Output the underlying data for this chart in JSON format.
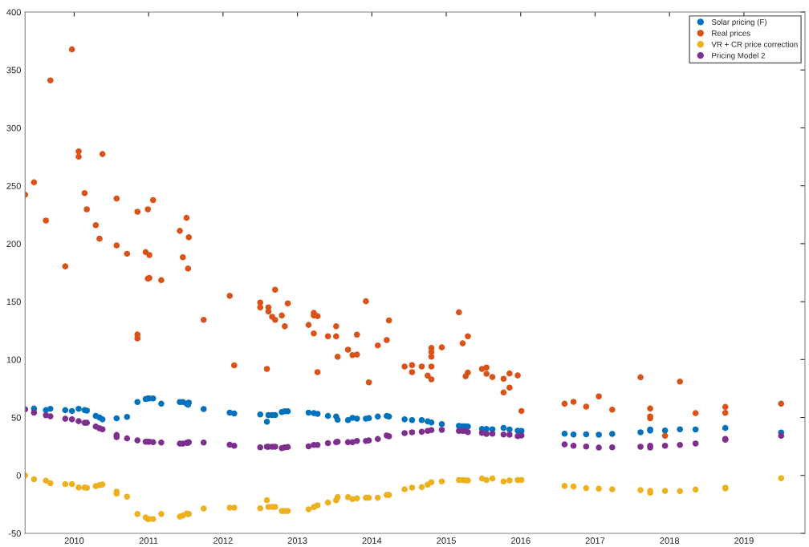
{
  "chart_data": {
    "type": "scatter",
    "xlim": [
      2009.34,
      2019.82
    ],
    "xticks": [
      2010,
      2011,
      2012,
      2013,
      2014,
      2015,
      2016,
      2017,
      2018,
      2019
    ],
    "ylim": [
      -50,
      400
    ],
    "yticks": [
      -50,
      0,
      50,
      100,
      150,
      200,
      250,
      300,
      350,
      400
    ],
    "legend": "top right",
    "marker": "circle",
    "grid": false,
    "series": [
      {
        "name": "Solar pricing (F)",
        "color": "#0072bd",
        "x": [
          2009.46,
          2009.62,
          2009.68,
          2009.88,
          2009.97,
          2010.06,
          2010.14,
          2010.17,
          2010.29,
          2010.34,
          2010.38,
          2010.57,
          2010.71,
          2010.85,
          2010.96,
          2010.99,
          2011.01,
          2011.06,
          2011.17,
          2011.42,
          2011.46,
          2011.51,
          2011.53,
          2011.54,
          2011.74,
          2012.09,
          2012.15,
          2012.5,
          2012.59,
          2012.61,
          2012.66,
          2012.7,
          2012.79,
          2012.83,
          2012.87,
          2013.15,
          2013.22,
          2013.27,
          2013.41,
          2013.52,
          2013.54,
          2013.68,
          2013.74,
          2013.8,
          2013.92,
          2013.96,
          2014.08,
          2014.2,
          2014.23,
          2014.44,
          2014.54,
          2014.67,
          2014.75,
          2014.8,
          2014.94,
          2015.17,
          2015.22,
          2015.26,
          2015.29,
          2015.48,
          2015.54,
          2015.62,
          2015.77,
          2015.85,
          2015.96,
          2016.01,
          2016.59,
          2016.71,
          2016.88,
          2017.05,
          2017.23,
          2017.61,
          2017.74,
          2017.74,
          2017.94,
          2018.14,
          2018.35,
          2018.75,
          2019.5
        ],
        "values": [
          57.7,
          56.3,
          57.5,
          56.3,
          55.6,
          57.5,
          56.3,
          55.9,
          51.4,
          50,
          48.4,
          49.3,
          50.5,
          63.3,
          65.9,
          66.5,
          66.5,
          66.5,
          61.9,
          63.3,
          63.3,
          61.9,
          61,
          62.8,
          57.3,
          54.2,
          53.5,
          52.6,
          46.3,
          52.1,
          52.1,
          52.1,
          54.7,
          55.4,
          55.4,
          54.2,
          53.7,
          53.1,
          51.3,
          50.8,
          48,
          47.8,
          49.7,
          49,
          49,
          49.4,
          50.8,
          51.3,
          50.8,
          48.4,
          47.8,
          47.8,
          46.6,
          45.7,
          44.3,
          42.7,
          42.4,
          42.4,
          42.2,
          40.1,
          40.1,
          39.8,
          41,
          39.6,
          38.6,
          38.4,
          36,
          35.3,
          35.5,
          35.1,
          35.8,
          37.2,
          38.7,
          39.6,
          38.8,
          39.8,
          39.6,
          40.9,
          37
        ]
      },
      {
        "name": "Real prices",
        "color": "#d95319",
        "x": [
          2009.34,
          2009.46,
          2009.62,
          2009.68,
          2009.88,
          2009.97,
          2010.06,
          2010.06,
          2010.14,
          2010.17,
          2010.29,
          2010.34,
          2010.38,
          2010.57,
          2010.57,
          2010.71,
          2010.85,
          2010.85,
          2010.85,
          2010.96,
          2010.99,
          2010.99,
          2011.01,
          2011.01,
          2011.06,
          2011.17,
          2011.42,
          2011.46,
          2011.51,
          2011.53,
          2011.54,
          2011.74,
          2012.09,
          2012.15,
          2012.5,
          2012.5,
          2012.59,
          2012.61,
          2012.61,
          2012.66,
          2012.7,
          2012.7,
          2012.79,
          2012.83,
          2012.87,
          2013.15,
          2013.22,
          2013.22,
          2013.22,
          2013.27,
          2013.27,
          2013.41,
          2013.52,
          2013.52,
          2013.54,
          2013.68,
          2013.74,
          2013.8,
          2013.8,
          2013.92,
          2013.96,
          2014.08,
          2014.2,
          2014.23,
          2014.44,
          2014.54,
          2014.54,
          2014.67,
          2014.75,
          2014.8,
          2014.8,
          2014.8,
          2014.8,
          2014.8,
          2014.94,
          2015.17,
          2015.22,
          2015.26,
          2015.29,
          2015.29,
          2015.48,
          2015.54,
          2015.54,
          2015.62,
          2015.77,
          2015.77,
          2015.85,
          2015.85,
          2015.96,
          2016.01,
          2016.59,
          2016.71,
          2016.88,
          2017.05,
          2017.23,
          2017.61,
          2017.74,
          2017.74,
          2017.74,
          2017.94,
          2018.14,
          2018.35,
          2018.75,
          2018.75,
          2019.5
        ],
        "values": [
          242.3,
          253,
          220,
          341,
          180.4,
          367.7,
          279.7,
          275.1,
          243.7,
          229.7,
          216,
          204.3,
          277.4,
          239,
          198.5,
          191.3,
          227.6,
          121.6,
          118.2,
          192.7,
          229.7,
          169.9,
          190.2,
          170.4,
          237.6,
          168.5,
          211.1,
          188.3,
          222.3,
          178.5,
          205.5,
          134.3,
          155,
          95,
          149.2,
          145,
          91.9,
          145,
          141.5,
          136.9,
          160.3,
          134.3,
          138,
          128.7,
          148.5,
          129.9,
          140.3,
          138,
          122.5,
          137.5,
          89.1,
          120.1,
          128.7,
          120,
          102.4,
          108.5,
          103.8,
          121.5,
          104.3,
          150.3,
          80.3,
          112.2,
          116.8,
          133.8,
          94,
          95.2,
          89.1,
          94,
          86.1,
          110,
          106.5,
          102.5,
          94,
          82.9,
          110.5,
          140.8,
          114,
          85.6,
          120.1,
          88.8,
          91.9,
          93.1,
          87.7,
          84.9,
          83.4,
          71.6,
          88,
          75.8,
          86.3,
          55.6,
          61.9,
          63.5,
          59.4,
          68.2,
          56.8,
          84.7,
          57.7,
          50.9,
          49.3,
          34.2,
          81,
          53.7,
          59.1,
          54,
          61.9
        ]
      },
      {
        "name": "VR + CR price correction",
        "color": "#edb120",
        "x": [
          2009.34,
          2009.46,
          2009.62,
          2009.68,
          2009.88,
          2009.97,
          2010.06,
          2010.14,
          2010.17,
          2010.29,
          2010.34,
          2010.38,
          2010.57,
          2010.57,
          2010.71,
          2010.85,
          2010.96,
          2010.99,
          2011.01,
          2011.06,
          2011.17,
          2011.42,
          2011.46,
          2011.51,
          2011.53,
          2011.54,
          2011.74,
          2012.09,
          2012.15,
          2012.5,
          2012.59,
          2012.61,
          2012.66,
          2012.7,
          2012.79,
          2012.83,
          2012.87,
          2013.15,
          2013.22,
          2013.27,
          2013.41,
          2013.52,
          2013.54,
          2013.68,
          2013.74,
          2013.8,
          2013.92,
          2013.96,
          2014.08,
          2014.2,
          2014.23,
          2014.44,
          2014.54,
          2014.67,
          2014.75,
          2014.8,
          2014.94,
          2015.17,
          2015.22,
          2015.26,
          2015.29,
          2015.48,
          2015.54,
          2015.62,
          2015.77,
          2015.85,
          2015.96,
          2016.01,
          2016.59,
          2016.71,
          2016.88,
          2017.05,
          2017.23,
          2017.61,
          2017.74,
          2017.74,
          2017.94,
          2018.14,
          2018.35,
          2018.75,
          2018.75,
          2019.5
        ],
        "values": [
          0,
          -3.3,
          -4.5,
          -6.8,
          -7.5,
          -7.5,
          -10.5,
          -10.5,
          -10.7,
          -9.3,
          -8.4,
          -7.9,
          -14,
          -15.8,
          -18.4,
          -33.3,
          -36.3,
          -37.7,
          -37.7,
          -37.7,
          -33.3,
          -35.6,
          -34.7,
          -33,
          -33.3,
          -33.3,
          -28.6,
          -27.9,
          -27.9,
          -28.4,
          -21.4,
          -27.2,
          -27.2,
          -27.2,
          -30.7,
          -30.7,
          -30.7,
          -29.3,
          -27.4,
          -25.8,
          -23.5,
          -21.6,
          -18.8,
          -18.8,
          -20.4,
          -19.8,
          -19.3,
          -19.3,
          -19.3,
          -16.9,
          -16.9,
          -12,
          -10.6,
          -10.1,
          -8,
          -5.9,
          -5.2,
          -4,
          -4,
          -4.3,
          -4.3,
          -2.7,
          -4,
          -2.7,
          -5.2,
          -4.3,
          -4,
          -4,
          -9.1,
          -9.6,
          -11,
          -11.5,
          -12,
          -12.7,
          -13.4,
          -15,
          -13.4,
          -13.6,
          -12.2,
          -10.6,
          -11.3,
          -2.4
        ]
      },
      {
        "name": "Pricing Model 2",
        "color": "#7e2f8e",
        "x": [
          2009.34,
          2009.46,
          2009.62,
          2009.68,
          2009.88,
          2009.97,
          2010.06,
          2010.14,
          2010.17,
          2010.29,
          2010.34,
          2010.38,
          2010.57,
          2010.57,
          2010.71,
          2010.85,
          2010.96,
          2010.99,
          2011.01,
          2011.06,
          2011.17,
          2011.42,
          2011.46,
          2011.51,
          2011.53,
          2011.54,
          2011.74,
          2012.09,
          2012.15,
          2012.5,
          2012.59,
          2012.61,
          2012.66,
          2012.7,
          2012.79,
          2012.83,
          2012.87,
          2013.15,
          2013.22,
          2013.27,
          2013.41,
          2013.52,
          2013.54,
          2013.68,
          2013.74,
          2013.8,
          2013.92,
          2013.96,
          2014.08,
          2014.2,
          2014.23,
          2014.44,
          2014.54,
          2014.67,
          2014.75,
          2014.8,
          2014.94,
          2015.17,
          2015.22,
          2015.26,
          2015.29,
          2015.48,
          2015.54,
          2015.62,
          2015.77,
          2015.85,
          2015.96,
          2016.01,
          2016.59,
          2016.71,
          2016.88,
          2017.05,
          2017.23,
          2017.61,
          2017.74,
          2017.74,
          2017.94,
          2018.14,
          2018.35,
          2018.75,
          2018.75,
          2019.5
        ],
        "values": [
          57,
          54.2,
          51.9,
          51,
          48.9,
          48.4,
          46.8,
          45.4,
          45.4,
          42.1,
          40.7,
          39.8,
          34.9,
          33,
          31.9,
          30.2,
          29.1,
          29.1,
          29.1,
          28.6,
          28.4,
          27.4,
          27.4,
          28.1,
          28.1,
          28.6,
          28.4,
          26.5,
          25.6,
          24.2,
          24.7,
          24.7,
          24.7,
          24.7,
          23.5,
          24.2,
          24.5,
          25.1,
          26.3,
          26.3,
          27.9,
          28.6,
          29.1,
          28.6,
          28.6,
          29.8,
          29.8,
          30.2,
          31.4,
          34.4,
          33.7,
          36.5,
          37.2,
          37.6,
          38.4,
          39.1,
          39.3,
          38.4,
          38.4,
          38.4,
          37.4,
          36.7,
          35.8,
          36,
          35.3,
          35.1,
          33.9,
          34.4,
          26.7,
          25.6,
          24.9,
          24,
          24.2,
          24.7,
          25.6,
          24,
          25.6,
          26.3,
          27.5,
          31.5,
          30.8,
          34.2
        ]
      }
    ]
  }
}
